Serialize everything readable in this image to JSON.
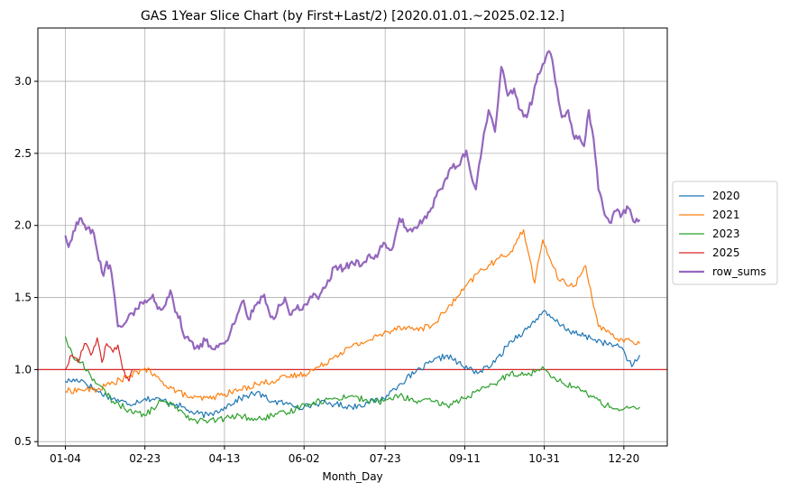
{
  "chart_data": {
    "type": "line",
    "title": "GAS 1Year Slice Chart (by First+Last/2) [2020.01.01.~2025.02.12.]",
    "xlabel": "Month_Day",
    "ylabel": "",
    "x_ticks": [
      "01-04",
      "02-23",
      "04-13",
      "06-02",
      "07-23",
      "09-11",
      "10-31",
      "12-20"
    ],
    "x_tick_index": [
      0,
      50,
      100,
      150,
      201,
      251,
      301,
      351
    ],
    "x_count": 362,
    "ylim": [
      0.47,
      3.37
    ],
    "y_ticks": [
      0.5,
      1.0,
      1.5,
      2.0,
      2.5,
      3.0
    ],
    "y_tick_labels": [
      "0.5",
      "1.0",
      "1.5",
      "2.0",
      "2.5",
      "3.0"
    ],
    "grid": true,
    "legend_position": "center-right",
    "hline": {
      "y": 1.0,
      "color": "#d62728"
    },
    "series": [
      {
        "name": "2020",
        "color": "#1f77b4",
        "width": 1.2,
        "points": [
          [
            0,
            0.92
          ],
          [
            10,
            0.93
          ],
          [
            20,
            0.85
          ],
          [
            30,
            0.8
          ],
          [
            40,
            0.76
          ],
          [
            50,
            0.8
          ],
          [
            60,
            0.79
          ],
          [
            70,
            0.76
          ],
          [
            80,
            0.7
          ],
          [
            90,
            0.68
          ],
          [
            100,
            0.74
          ],
          [
            110,
            0.8
          ],
          [
            120,
            0.84
          ],
          [
            130,
            0.78
          ],
          [
            140,
            0.76
          ],
          [
            150,
            0.74
          ],
          [
            160,
            0.77
          ],
          [
            170,
            0.76
          ],
          [
            180,
            0.74
          ],
          [
            190,
            0.77
          ],
          [
            200,
            0.8
          ],
          [
            210,
            0.9
          ],
          [
            220,
            0.98
          ],
          [
            230,
            1.05
          ],
          [
            240,
            1.1
          ],
          [
            250,
            1.02
          ],
          [
            260,
            0.98
          ],
          [
            270,
            1.05
          ],
          [
            280,
            1.2
          ],
          [
            290,
            1.28
          ],
          [
            300,
            1.4
          ],
          [
            310,
            1.32
          ],
          [
            320,
            1.25
          ],
          [
            330,
            1.22
          ],
          [
            340,
            1.18
          ],
          [
            350,
            1.15
          ],
          [
            356,
            1.02
          ],
          [
            361,
            1.1
          ]
        ]
      },
      {
        "name": "2021",
        "color": "#ff7f0e",
        "width": 1.2,
        "points": [
          [
            0,
            0.85
          ],
          [
            10,
            0.86
          ],
          [
            20,
            0.86
          ],
          [
            30,
            0.91
          ],
          [
            40,
            0.95
          ],
          [
            50,
            1.01
          ],
          [
            60,
            0.92
          ],
          [
            70,
            0.85
          ],
          [
            80,
            0.8
          ],
          [
            90,
            0.8
          ],
          [
            100,
            0.83
          ],
          [
            110,
            0.86
          ],
          [
            120,
            0.9
          ],
          [
            130,
            0.92
          ],
          [
            140,
            0.95
          ],
          [
            150,
            0.97
          ],
          [
            160,
            1.02
          ],
          [
            170,
            1.1
          ],
          [
            180,
            1.16
          ],
          [
            190,
            1.2
          ],
          [
            200,
            1.25
          ],
          [
            210,
            1.3
          ],
          [
            220,
            1.28
          ],
          [
            230,
            1.3
          ],
          [
            240,
            1.42
          ],
          [
            250,
            1.55
          ],
          [
            260,
            1.68
          ],
          [
            270,
            1.75
          ],
          [
            280,
            1.82
          ],
          [
            288,
            1.97
          ],
          [
            295,
            1.6
          ],
          [
            300,
            1.9
          ],
          [
            310,
            1.62
          ],
          [
            320,
            1.58
          ],
          [
            327,
            1.72
          ],
          [
            335,
            1.3
          ],
          [
            345,
            1.22
          ],
          [
            355,
            1.2
          ],
          [
            361,
            1.18
          ]
        ]
      },
      {
        "name": "2023",
        "color": "#2ca02c",
        "width": 1.2,
        "points": [
          [
            0,
            1.23
          ],
          [
            5,
            1.08
          ],
          [
            10,
            1.05
          ],
          [
            20,
            0.9
          ],
          [
            30,
            0.78
          ],
          [
            40,
            0.72
          ],
          [
            50,
            0.68
          ],
          [
            60,
            0.78
          ],
          [
            70,
            0.74
          ],
          [
            80,
            0.65
          ],
          [
            90,
            0.64
          ],
          [
            100,
            0.66
          ],
          [
            110,
            0.68
          ],
          [
            120,
            0.65
          ],
          [
            130,
            0.68
          ],
          [
            140,
            0.7
          ],
          [
            150,
            0.76
          ],
          [
            160,
            0.78
          ],
          [
            170,
            0.8
          ],
          [
            180,
            0.82
          ],
          [
            190,
            0.78
          ],
          [
            200,
            0.78
          ],
          [
            210,
            0.82
          ],
          [
            220,
            0.78
          ],
          [
            230,
            0.78
          ],
          [
            240,
            0.75
          ],
          [
            250,
            0.8
          ],
          [
            260,
            0.85
          ],
          [
            270,
            0.9
          ],
          [
            280,
            0.98
          ],
          [
            290,
            0.96
          ],
          [
            300,
            1.02
          ],
          [
            310,
            0.92
          ],
          [
            320,
            0.88
          ],
          [
            330,
            0.82
          ],
          [
            340,
            0.75
          ],
          [
            350,
            0.72
          ],
          [
            361,
            0.74
          ]
        ]
      },
      {
        "name": "2025",
        "color": "#d62728",
        "width": 1.2,
        "points": [
          [
            0,
            1.0
          ],
          [
            4,
            1.1
          ],
          [
            8,
            1.05
          ],
          [
            12,
            1.18
          ],
          [
            16,
            1.1
          ],
          [
            20,
            1.22
          ],
          [
            23,
            1.05
          ],
          [
            26,
            1.18
          ],
          [
            30,
            1.12
          ],
          [
            33,
            1.17
          ],
          [
            36,
            1.0
          ],
          [
            40,
            0.92
          ],
          [
            42,
            1.0
          ]
        ]
      },
      {
        "name": "row_sums",
        "color": "#9467bd",
        "width": 2.2,
        "points": [
          [
            0,
            1.93
          ],
          [
            2,
            1.85
          ],
          [
            5,
            1.96
          ],
          [
            10,
            2.05
          ],
          [
            13,
            1.97
          ],
          [
            17,
            1.97
          ],
          [
            20,
            1.82
          ],
          [
            24,
            1.65
          ],
          [
            26,
            1.75
          ],
          [
            29,
            1.67
          ],
          [
            31,
            1.5
          ],
          [
            33,
            1.3
          ],
          [
            36,
            1.3
          ],
          [
            40,
            1.38
          ],
          [
            45,
            1.42
          ],
          [
            50,
            1.48
          ],
          [
            55,
            1.52
          ],
          [
            58,
            1.42
          ],
          [
            63,
            1.45
          ],
          [
            66,
            1.55
          ],
          [
            69,
            1.4
          ],
          [
            72,
            1.37
          ],
          [
            74,
            1.25
          ],
          [
            78,
            1.2
          ],
          [
            82,
            1.15
          ],
          [
            88,
            1.2
          ],
          [
            94,
            1.14
          ],
          [
            100,
            1.18
          ],
          [
            104,
            1.27
          ],
          [
            108,
            1.38
          ],
          [
            112,
            1.48
          ],
          [
            115,
            1.35
          ],
          [
            120,
            1.45
          ],
          [
            125,
            1.52
          ],
          [
            128,
            1.4
          ],
          [
            131,
            1.35
          ],
          [
            134,
            1.45
          ],
          [
            138,
            1.5
          ],
          [
            141,
            1.38
          ],
          [
            145,
            1.42
          ],
          [
            150,
            1.45
          ],
          [
            155,
            1.5
          ],
          [
            160,
            1.52
          ],
          [
            165,
            1.62
          ],
          [
            170,
            1.72
          ],
          [
            175,
            1.7
          ],
          [
            180,
            1.75
          ],
          [
            186,
            1.72
          ],
          [
            191,
            1.8
          ],
          [
            196,
            1.78
          ],
          [
            200,
            1.88
          ],
          [
            205,
            1.83
          ],
          [
            210,
            2.05
          ],
          [
            216,
            1.97
          ],
          [
            222,
            2.0
          ],
          [
            227,
            2.05
          ],
          [
            233,
            2.2
          ],
          [
            238,
            2.3
          ],
          [
            243,
            2.4
          ],
          [
            248,
            2.42
          ],
          [
            252,
            2.52
          ],
          [
            255,
            2.35
          ],
          [
            258,
            2.25
          ],
          [
            262,
            2.55
          ],
          [
            266,
            2.8
          ],
          [
            270,
            2.65
          ],
          [
            274,
            3.1
          ],
          [
            278,
            2.9
          ],
          [
            282,
            2.95
          ],
          [
            286,
            2.8
          ],
          [
            290,
            2.75
          ],
          [
            294,
            2.9
          ],
          [
            297,
            3.05
          ],
          [
            300,
            3.12
          ],
          [
            303,
            3.2
          ],
          [
            306,
            3.15
          ],
          [
            309,
            2.95
          ],
          [
            312,
            2.75
          ],
          [
            316,
            2.8
          ],
          [
            320,
            2.6
          ],
          [
            323,
            2.62
          ],
          [
            326,
            2.55
          ],
          [
            329,
            2.8
          ],
          [
            332,
            2.6
          ],
          [
            335,
            2.25
          ],
          [
            338,
            2.12
          ],
          [
            342,
            2.02
          ],
          [
            346,
            2.1
          ],
          [
            350,
            2.08
          ],
          [
            354,
            2.12
          ],
          [
            358,
            2.02
          ],
          [
            361,
            2.04
          ]
        ]
      }
    ]
  }
}
